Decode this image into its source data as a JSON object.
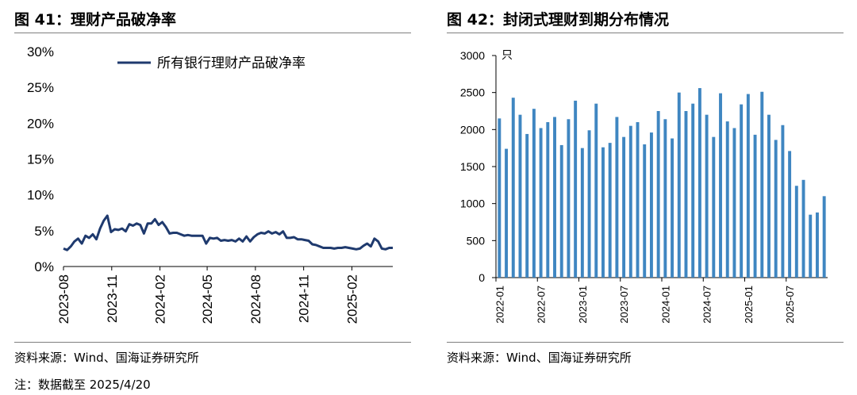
{
  "left_panel": {
    "title": "图 41：理财产品破净率",
    "source": "资料来源：Wind、国海证券研究所",
    "note": "注：数据截至 2025/4/20"
  },
  "right_panel": {
    "title": "图 42：封闭式理财到期分布情况",
    "source": "资料来源：Wind、国海证券研究所"
  },
  "colors": {
    "line": "#1f3a6e",
    "bar": "#3f86c1",
    "rule": "#7f7f7f"
  },
  "chart_data": [
    {
      "type": "line",
      "title": "",
      "legend": {
        "label": "所有银行理财产品破净率",
        "position": "top-right"
      },
      "ylim": [
        0,
        30
      ],
      "yticks": [
        "0%",
        "5%",
        "10%",
        "15%",
        "20%",
        "25%",
        "30%"
      ],
      "xticks": [
        "2023-08",
        "2023-11",
        "2024-02",
        "2024-05",
        "2024-08",
        "2024-11",
        "2025-02"
      ],
      "x_range": [
        "2023-08-01",
        "2025-04-20"
      ],
      "series": [
        {
          "name": "所有银行理财产品破净率",
          "values": [
            2.5,
            2.3,
            2.8,
            3.5,
            3.9,
            3.2,
            4.3,
            4.0,
            4.5,
            3.8,
            5.3,
            6.4,
            7.1,
            4.8,
            5.2,
            5.1,
            5.3,
            4.9,
            5.9,
            5.7,
            6.0,
            5.8,
            4.6,
            6.0,
            6.0,
            6.6,
            5.8,
            6.2,
            5.5,
            4.6,
            4.7,
            4.7,
            4.5,
            4.3,
            4.4,
            4.3,
            4.3,
            4.3,
            4.3,
            3.2,
            4.0,
            3.9,
            4.0,
            3.6,
            3.7,
            3.6,
            3.7,
            3.5,
            3.9,
            3.5,
            4.2,
            3.5,
            4.1,
            4.5,
            4.7,
            4.6,
            4.9,
            4.6,
            4.8,
            4.5,
            4.9,
            4.0,
            4.0,
            4.1,
            3.8,
            3.8,
            3.7,
            3.6,
            3.1,
            3.0,
            2.8,
            2.6,
            2.6,
            2.6,
            2.5,
            2.6,
            2.6,
            2.7,
            2.6,
            2.5,
            2.4,
            2.5,
            2.9,
            3.2,
            2.8,
            3.9,
            3.5,
            2.5,
            2.4,
            2.6,
            2.6
          ]
        }
      ]
    },
    {
      "type": "bar",
      "title": "",
      "ylabel": "只",
      "ylim": [
        0,
        3000
      ],
      "yticks": [
        "0",
        "500",
        "1000",
        "1500",
        "2000",
        "2500",
        "3000"
      ],
      "xticks": [
        "2022-01",
        "2022-07",
        "2023-01",
        "2023-07",
        "2024-01",
        "2024-07",
        "2025-01",
        "2025-07"
      ],
      "categories": [
        "2022-01",
        "2022-02",
        "2022-03",
        "2022-04",
        "2022-05",
        "2022-06",
        "2022-07",
        "2022-08",
        "2022-09",
        "2022-10",
        "2022-11",
        "2022-12",
        "2023-01",
        "2023-02",
        "2023-03",
        "2023-04",
        "2023-05",
        "2023-06",
        "2023-07",
        "2023-08",
        "2023-09",
        "2023-10",
        "2023-11",
        "2023-12",
        "2024-01",
        "2024-02",
        "2024-03",
        "2024-04",
        "2024-05",
        "2024-06",
        "2024-07",
        "2024-08",
        "2024-09",
        "2024-10",
        "2024-11",
        "2024-12",
        "2025-01",
        "2025-02",
        "2025-03",
        "2025-04",
        "2025-05",
        "2025-06",
        "2025-07",
        "2025-08",
        "2025-09",
        "2025-10",
        "2025-11",
        "2025-12"
      ],
      "values": [
        2150,
        1740,
        2430,
        2200,
        1940,
        2280,
        2020,
        2100,
        2170,
        1790,
        2140,
        2390,
        1750,
        1990,
        2350,
        1760,
        1820,
        2170,
        1900,
        2050,
        2100,
        1800,
        1960,
        2250,
        2140,
        1880,
        2500,
        2250,
        2350,
        2560,
        2200,
        1900,
        2490,
        2110,
        2020,
        2340,
        2480,
        1930,
        2510,
        2200,
        1860,
        2060,
        1710,
        1240,
        1320,
        850,
        880,
        1100
      ]
    }
  ]
}
